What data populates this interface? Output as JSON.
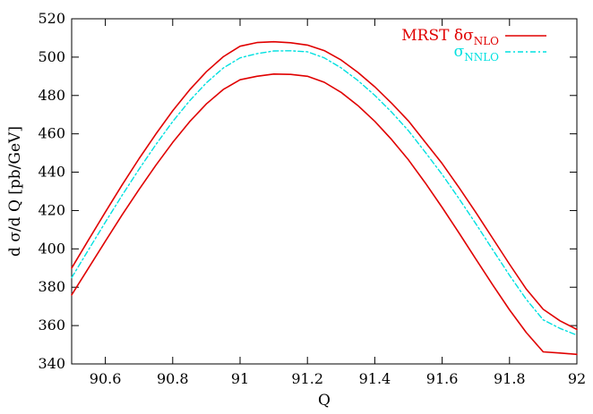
{
  "chart_data": {
    "type": "line",
    "title": "",
    "xlabel": "Q",
    "ylabel": "d σ/d Q [pb/GeV]",
    "xlim": [
      90.5,
      92.0
    ],
    "ylim": [
      340,
      520
    ],
    "x_ticks": [
      "90.6",
      "90.8",
      "91",
      "91.2",
      "91.4",
      "91.6",
      "91.8",
      "92"
    ],
    "y_ticks": [
      "340",
      "360",
      "380",
      "400",
      "420",
      "440",
      "460",
      "480",
      "500",
      "520"
    ],
    "x_tick_values": [
      90.6,
      90.8,
      91.0,
      91.2,
      91.4,
      91.6,
      91.8,
      92.0
    ],
    "y_tick_values": [
      340,
      360,
      380,
      400,
      420,
      440,
      460,
      480,
      500,
      520
    ],
    "grid": false,
    "legend": {
      "placement": "top-right",
      "entries": [
        {
          "label_main": "MRST δσ",
          "label_sub": "NLO",
          "color": "#e00000",
          "style": "solid"
        },
        {
          "label_main": "σ",
          "label_sub": "NNLO",
          "color": "#00e0e0",
          "style": "dash-dot"
        }
      ]
    },
    "x": [
      90.5,
      90.55,
      90.6,
      90.65,
      90.7,
      90.75,
      90.8,
      90.85,
      90.9,
      90.95,
      91.0,
      91.05,
      91.1,
      91.15,
      91.2,
      91.25,
      91.3,
      91.35,
      91.4,
      91.45,
      91.5,
      91.55,
      91.6,
      91.65,
      91.7,
      91.75,
      91.8,
      91.85,
      91.9,
      91.95,
      92.0
    ],
    "series": [
      {
        "color": "#e00000",
        "style": "solid",
        "values": [
          390.0,
          404.7,
          419.2,
          433.4,
          447.0,
          459.9,
          472.0,
          482.9,
          492.4,
          500.2,
          505.7,
          507.6,
          508.0,
          507.5,
          506.3,
          503.4,
          498.5,
          492.0,
          484.5,
          476.0,
          466.7,
          455.6,
          444.5,
          432.0,
          419.0,
          405.5,
          392.0,
          379.0,
          368.5,
          362.5,
          358.0
        ]
      },
      {
        "color": "#e00000",
        "style": "solid",
        "values": [
          376.0,
          390.0,
          404.0,
          417.8,
          431.0,
          443.6,
          455.5,
          466.3,
          475.6,
          483.1,
          488.2,
          490.0,
          491.2,
          491.0,
          490.0,
          486.9,
          481.6,
          474.7,
          466.5,
          457.0,
          446.4,
          434.4,
          421.6,
          408.3,
          394.7,
          381.2,
          368.2,
          356.3,
          346.3,
          345.7,
          345.0
        ]
      },
      {
        "color": "#00e0e0",
        "style": "dash-dot",
        "values": [
          385.0,
          399.5,
          413.9,
          428.0,
          441.5,
          454.4,
          466.4,
          477.2,
          486.6,
          494.3,
          499.6,
          501.8,
          503.2,
          503.3,
          502.8,
          499.6,
          494.4,
          487.8,
          480.1,
          471.3,
          461.6,
          450.4,
          438.8,
          426.2,
          413.1,
          399.6,
          386.2,
          373.6,
          363.0,
          358.5,
          355.0
        ]
      }
    ]
  }
}
